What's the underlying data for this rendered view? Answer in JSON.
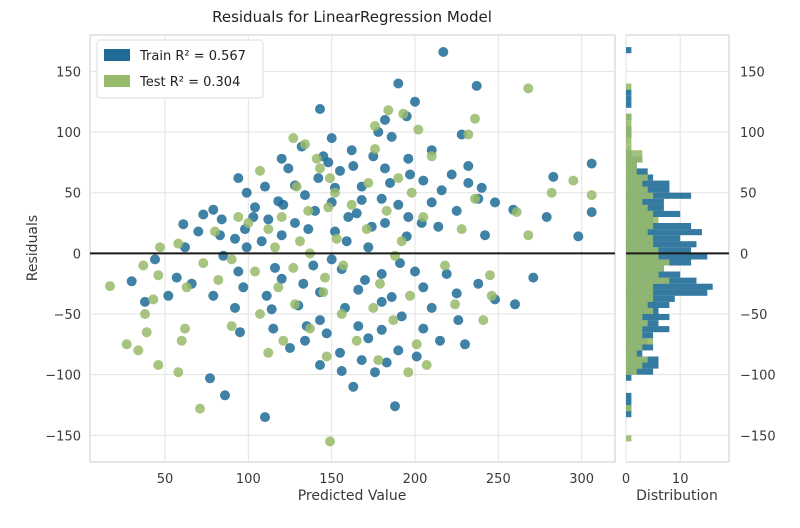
{
  "chart_data": {
    "type": "scatter",
    "title": "Residuals for LinearRegression Model",
    "xlabel": "Predicted Value",
    "ylabel": "Residuals",
    "xlim": [
      5,
      320
    ],
    "ylim": [
      -172,
      180
    ],
    "xticks": [
      "50",
      "100",
      "150",
      "200",
      "250",
      "300"
    ],
    "yticks": [
      "150",
      "100",
      "50",
      "0",
      "−50",
      "−100",
      "−150"
    ],
    "grid": true,
    "legend_position": "upper-left",
    "zero_line": true,
    "colors": {
      "train": "#1f6b97",
      "test": "#98bb6b",
      "zero_line": "#1a1a1a"
    },
    "legend": {
      "train_label": "Train R² = 0.567",
      "test_label": "Test R² = 0.304"
    },
    "series": [
      {
        "key": "train",
        "points": [
          [
            217,
            166
          ],
          [
            190,
            140
          ],
          [
            237,
            138
          ],
          [
            200,
            125
          ],
          [
            143,
            119
          ],
          [
            195,
            113
          ],
          [
            182,
            110
          ],
          [
            178,
            100
          ],
          [
            186,
            96
          ],
          [
            228,
            98
          ],
          [
            150,
            95
          ],
          [
            132,
            88
          ],
          [
            162,
            85
          ],
          [
            210,
            85
          ],
          [
            145,
            80
          ],
          [
            120,
            78
          ],
          [
            175,
            80
          ],
          [
            196,
            78
          ],
          [
            148,
            75
          ],
          [
            163,
            72
          ],
          [
            182,
            70
          ],
          [
            232,
            72
          ],
          [
            124,
            70
          ],
          [
            155,
            68
          ],
          [
            197,
            65
          ],
          [
            222,
            65
          ],
          [
            94,
            62
          ],
          [
            142,
            62
          ],
          [
            205,
            60
          ],
          [
            185,
            58
          ],
          [
            232,
            58
          ],
          [
            128,
            56
          ],
          [
            168,
            55
          ],
          [
            110,
            55
          ],
          [
            152,
            54
          ],
          [
            216,
            52
          ],
          [
            240,
            54
          ],
          [
            99,
            50
          ],
          [
            134,
            48
          ],
          [
            306,
            74
          ],
          [
            283,
            63
          ],
          [
            238,
            45
          ],
          [
            168,
            44
          ],
          [
            180,
            45
          ],
          [
            118,
            43
          ],
          [
            121,
            40
          ],
          [
            104,
            38
          ],
          [
            190,
            40
          ],
          [
            150,
            42
          ],
          [
            210,
            42
          ],
          [
            248,
            42
          ],
          [
            79,
            36
          ],
          [
            140,
            35
          ],
          [
            165,
            33
          ],
          [
            225,
            35
          ],
          [
            73,
            32
          ],
          [
            103,
            30
          ],
          [
            160,
            30
          ],
          [
            196,
            30
          ],
          [
            112,
            28
          ],
          [
            84,
            28
          ],
          [
            128,
            25
          ],
          [
            182,
            25
          ],
          [
            204,
            25
          ],
          [
            61,
            24
          ],
          [
            174,
            22
          ],
          [
            214,
            22
          ],
          [
            98,
            20
          ],
          [
            136,
            20
          ],
          [
            152,
            18
          ],
          [
            306,
            34
          ],
          [
            259,
            36
          ],
          [
            279,
            30
          ],
          [
            70,
            18
          ],
          [
            120,
            15
          ],
          [
            83,
            15
          ],
          [
            195,
            14
          ],
          [
            92,
            12
          ],
          [
            108,
            10
          ],
          [
            159,
            10
          ],
          [
            242,
            15
          ],
          [
            298,
            14
          ],
          [
            62,
            5
          ],
          [
            99,
            5
          ],
          [
            172,
            5
          ],
          [
            44,
            -5
          ],
          [
            85,
            -2
          ],
          [
            150,
            -5
          ],
          [
            139,
            -10
          ],
          [
            191,
            -8
          ],
          [
            116,
            -12
          ],
          [
            156,
            -13
          ],
          [
            200,
            -15
          ],
          [
            94,
            -15
          ],
          [
            180,
            -17
          ],
          [
            219,
            -17
          ],
          [
            57,
            -20
          ],
          [
            120,
            -21
          ],
          [
            170,
            -22
          ],
          [
            133,
            -25
          ],
          [
            238,
            -25
          ],
          [
            271,
            -20
          ],
          [
            30,
            -23
          ],
          [
            66,
            -25
          ],
          [
            97,
            -28
          ],
          [
            205,
            -28
          ],
          [
            166,
            -30
          ],
          [
            143,
            -32
          ],
          [
            225,
            -33
          ],
          [
            111,
            -35
          ],
          [
            186,
            -36
          ],
          [
            79,
            -35
          ],
          [
            52,
            -35
          ],
          [
            180,
            -40
          ],
          [
            248,
            -38
          ],
          [
            130,
            -43
          ],
          [
            158,
            -45
          ],
          [
            260,
            -42
          ],
          [
            92,
            -45
          ],
          [
            114,
            -46
          ],
          [
            210,
            -45
          ],
          [
            38,
            -40
          ],
          [
            192,
            -52
          ],
          [
            143,
            -55
          ],
          [
            135,
            -60
          ],
          [
            166,
            -60
          ],
          [
            226,
            -55
          ],
          [
            180,
            -63
          ],
          [
            115,
            -62
          ],
          [
            147,
            -66
          ],
          [
            172,
            -70
          ],
          [
            205,
            -62
          ],
          [
            95,
            -65
          ],
          [
            134,
            -72
          ],
          [
            215,
            -72
          ],
          [
            190,
            -80
          ],
          [
            125,
            -78
          ],
          [
            155,
            -82
          ],
          [
            230,
            -75
          ],
          [
            201,
            -85
          ],
          [
            168,
            -88
          ],
          [
            143,
            -92
          ],
          [
            183,
            -90
          ],
          [
            156,
            -97
          ],
          [
            176,
            -98
          ],
          [
            77,
            -103
          ],
          [
            86,
            -117
          ],
          [
            163,
            -110
          ],
          [
            110,
            -135
          ],
          [
            188,
            -126
          ]
        ]
      },
      {
        "key": "test",
        "points": [
          [
            268,
            136
          ],
          [
            184,
            118
          ],
          [
            193,
            115
          ],
          [
            236,
            111
          ],
          [
            176,
            105
          ],
          [
            202,
            102
          ],
          [
            232,
            98
          ],
          [
            127,
            95
          ],
          [
            134,
            90
          ],
          [
            176,
            86
          ],
          [
            141,
            78
          ],
          [
            210,
            80
          ],
          [
            143,
            70
          ],
          [
            107,
            68
          ],
          [
            149,
            62
          ],
          [
            190,
            62
          ],
          [
            172,
            58
          ],
          [
            129,
            55
          ],
          [
            152,
            50
          ],
          [
            198,
            50
          ],
          [
            295,
            60
          ],
          [
            306,
            48
          ],
          [
            282,
            50
          ],
          [
            236,
            45
          ],
          [
            162,
            40
          ],
          [
            148,
            38
          ],
          [
            136,
            35
          ],
          [
            183,
            35
          ],
          [
            120,
            30
          ],
          [
            94,
            30
          ],
          [
            205,
            30
          ],
          [
            261,
            34
          ],
          [
            112,
            20
          ],
          [
            100,
            25
          ],
          [
            171,
            20
          ],
          [
            228,
            20
          ],
          [
            80,
            18
          ],
          [
            153,
            12
          ],
          [
            131,
            10
          ],
          [
            58,
            8
          ],
          [
            192,
            10
          ],
          [
            268,
            15
          ],
          [
            47,
            5
          ],
          [
            116,
            5
          ],
          [
            137,
            0
          ],
          [
            188,
            -2
          ],
          [
            90,
            -5
          ],
          [
            73,
            -8
          ],
          [
            157,
            -10
          ],
          [
            37,
            -10
          ],
          [
            127,
            -12
          ],
          [
            104,
            -15
          ],
          [
            218,
            -10
          ],
          [
            46,
            -18
          ],
          [
            146,
            -20
          ],
          [
            245,
            -18
          ],
          [
            82,
            -22
          ],
          [
            179,
            -25
          ],
          [
            118,
            -28
          ],
          [
            63,
            -28
          ],
          [
            17,
            -27
          ],
          [
            145,
            -32
          ],
          [
            197,
            -35
          ],
          [
            246,
            -35
          ],
          [
            43,
            -38
          ],
          [
            128,
            -42
          ],
          [
            175,
            -45
          ],
          [
            224,
            -42
          ],
          [
            107,
            -50
          ],
          [
            156,
            -50
          ],
          [
            38,
            -50
          ],
          [
            187,
            -55
          ],
          [
            241,
            -55
          ],
          [
            137,
            -62
          ],
          [
            62,
            -62
          ],
          [
            39,
            -65
          ],
          [
            90,
            -60
          ],
          [
            165,
            -72
          ],
          [
            121,
            -72
          ],
          [
            201,
            -75
          ],
          [
            60,
            -72
          ],
          [
            27,
            -75
          ],
          [
            34,
            -80
          ],
          [
            112,
            -82
          ],
          [
            147,
            -85
          ],
          [
            178,
            -88
          ],
          [
            207,
            -92
          ],
          [
            46,
            -92
          ],
          [
            58,
            -98
          ],
          [
            196,
            -98
          ],
          [
            71,
            -128
          ],
          [
            149,
            -155
          ]
        ]
      }
    ],
    "distribution": {
      "xlabel": "Distribution",
      "xticks": [
        "0",
        "10"
      ],
      "xlim": [
        0,
        19
      ],
      "bin_width": 5,
      "train_bins": [
        [
          165,
          1
        ],
        [
          135,
          0
        ],
        [
          130,
          1
        ],
        [
          125,
          1
        ],
        [
          120,
          1
        ],
        [
          110,
          1
        ],
        [
          100,
          1
        ],
        [
          95,
          1
        ],
        [
          80,
          1
        ],
        [
          75,
          3
        ],
        [
          70,
          2
        ],
        [
          65,
          4
        ],
        [
          60,
          5
        ],
        [
          55,
          8
        ],
        [
          50,
          8
        ],
        [
          45,
          12
        ],
        [
          40,
          7
        ],
        [
          35,
          7
        ],
        [
          30,
          10
        ],
        [
          25,
          5
        ],
        [
          20,
          12
        ],
        [
          15,
          14
        ],
        [
          10,
          10
        ],
        [
          5,
          13
        ],
        [
          0,
          12
        ],
        [
          -5,
          15
        ],
        [
          -10,
          12
        ],
        [
          -15,
          7
        ],
        [
          -20,
          10
        ],
        [
          -25,
          13
        ],
        [
          -30,
          16
        ],
        [
          -35,
          15
        ],
        [
          -40,
          9
        ],
        [
          -45,
          8
        ],
        [
          -50,
          6
        ],
        [
          -55,
          8
        ],
        [
          -60,
          6
        ],
        [
          -65,
          8
        ],
        [
          -70,
          5
        ],
        [
          -75,
          4
        ],
        [
          -80,
          5
        ],
        [
          -85,
          3
        ],
        [
          -90,
          6
        ],
        [
          -95,
          6
        ],
        [
          -100,
          5
        ],
        [
          -105,
          1
        ],
        [
          -120,
          1
        ],
        [
          -125,
          1
        ],
        [
          -130,
          1
        ],
        [
          -135,
          1
        ]
      ],
      "test_bins": [
        [
          135,
          1
        ],
        [
          110,
          1
        ],
        [
          105,
          1
        ],
        [
          100,
          1
        ],
        [
          95,
          1
        ],
        [
          90,
          1
        ],
        [
          85,
          1
        ],
        [
          80,
          3
        ],
        [
          75,
          3
        ],
        [
          70,
          2
        ],
        [
          65,
          2
        ],
        [
          60,
          4
        ],
        [
          55,
          3
        ],
        [
          50,
          4
        ],
        [
          45,
          5
        ],
        [
          40,
          3
        ],
        [
          35,
          4
        ],
        [
          30,
          5
        ],
        [
          25,
          6
        ],
        [
          20,
          5
        ],
        [
          15,
          4
        ],
        [
          10,
          5
        ],
        [
          5,
          5
        ],
        [
          0,
          6
        ],
        [
          -5,
          6
        ],
        [
          -10,
          8
        ],
        [
          -15,
          7
        ],
        [
          -20,
          6
        ],
        [
          -25,
          8
        ],
        [
          -30,
          5
        ],
        [
          -35,
          5
        ],
        [
          -40,
          5
        ],
        [
          -45,
          4
        ],
        [
          -50,
          5
        ],
        [
          -55,
          3
        ],
        [
          -60,
          4
        ],
        [
          -65,
          3
        ],
        [
          -70,
          3
        ],
        [
          -75,
          5
        ],
        [
          -80,
          3
        ],
        [
          -85,
          2
        ],
        [
          -90,
          4
        ],
        [
          -95,
          3
        ],
        [
          -100,
          2
        ],
        [
          -130,
          1
        ],
        [
          -155,
          1
        ]
      ]
    }
  }
}
